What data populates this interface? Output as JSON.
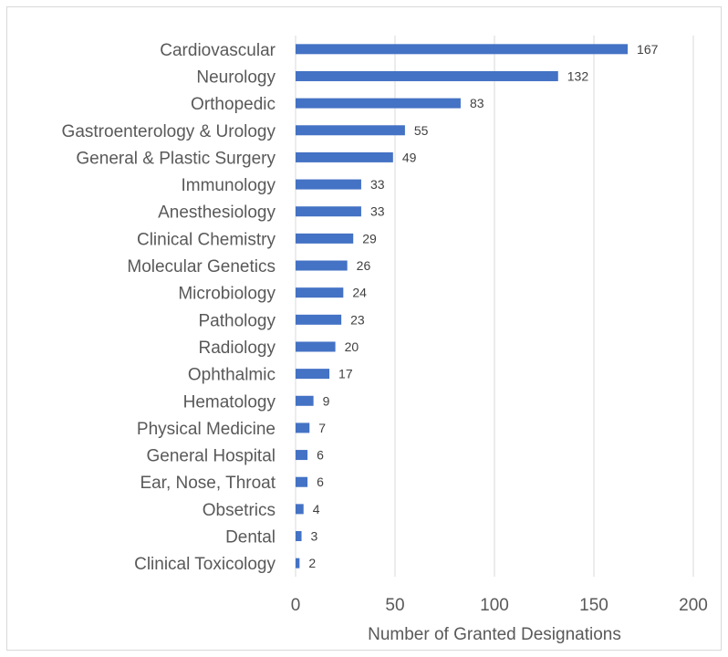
{
  "chart_data": {
    "type": "bar",
    "orientation": "horizontal",
    "categories": [
      "Cardiovascular",
      "Neurology",
      "Orthopedic",
      "Gastroenterology & Urology",
      "General & Plastic Surgery",
      "Immunology",
      "Anesthesiology",
      "Clinical Chemistry",
      "Molecular Genetics",
      "Microbiology",
      "Pathology",
      "Radiology",
      "Ophthalmic",
      "Hematology",
      "Physical Medicine",
      "General Hospital",
      "Ear, Nose, Throat",
      "Obsetrics",
      "Dental",
      "Clinical Toxicology"
    ],
    "values": [
      167,
      132,
      83,
      55,
      49,
      33,
      33,
      29,
      26,
      24,
      23,
      20,
      17,
      9,
      7,
      6,
      6,
      4,
      3,
      2
    ],
    "title": "",
    "xlabel": "Number of Granted Designations",
    "ylabel": "",
    "xlim": [
      0,
      200
    ],
    "xticks": [
      0,
      50,
      100,
      150,
      200
    ],
    "grid": "vertical",
    "legend": "none",
    "bar_color": "#4472c4",
    "gridline_color": "#d9d9d9",
    "text_color": "#595959"
  }
}
